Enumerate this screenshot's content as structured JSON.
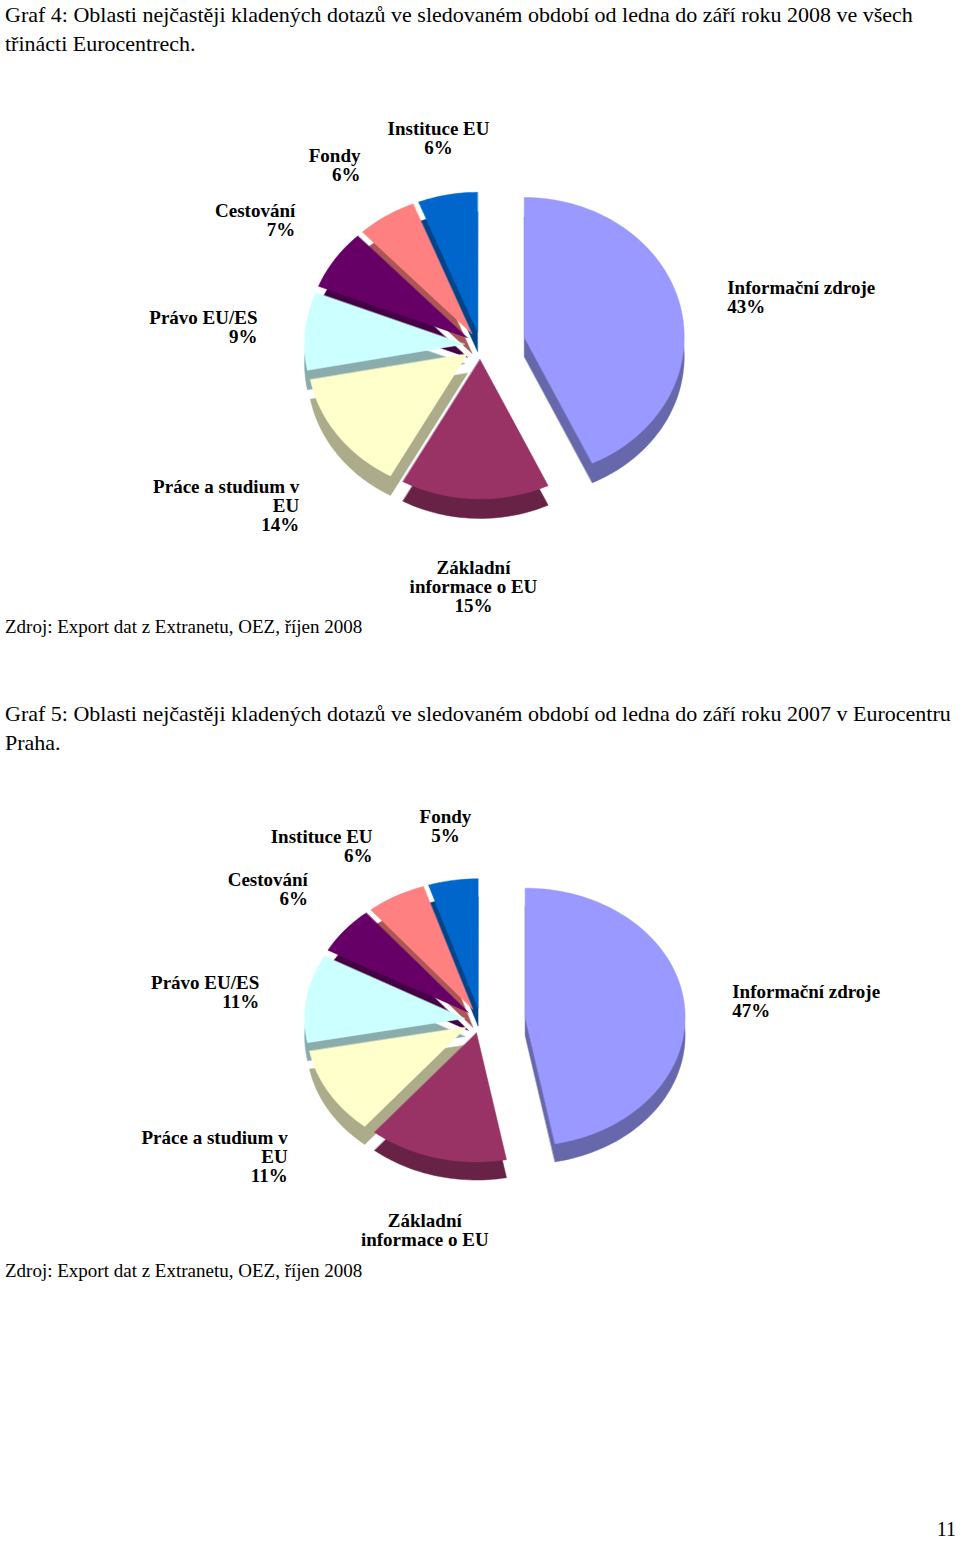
{
  "page_number": "11",
  "chart_data": [
    {
      "type": "pie",
      "title": "Graf 4: Oblasti nejčastěji kladených dotazů ve sledovaném období od ledna do září roku 2008 ve všech třinácti Eurocentrech.",
      "source": "Zdroj: Export dat z Extranetu, OEZ, říjen 2008",
      "categories": [
        "Informační zdroje",
        "Základní informace o EU",
        "Práce a studium v EU",
        "Právo EU/ES",
        "Cestování",
        "Fondy",
        "Instituce EU"
      ],
      "values": [
        43,
        15,
        14,
        9,
        7,
        6,
        6
      ],
      "value_labels": [
        "43%",
        "15%",
        "14%",
        "9%",
        "7%",
        "6%",
        "6%"
      ],
      "colors": [
        "#9999FF",
        "#993366",
        "#FFFFCC",
        "#CCFFFF",
        "#660066",
        "#FF8080",
        "#0066CC"
      ],
      "data_labels": true,
      "tick_labels": false
    },
    {
      "type": "pie",
      "title": "Graf 5: Oblasti nejčastěji kladených dotazů ve sledovaném období od ledna do září roku 2007 v Eurocentru Praha.",
      "source": "Zdroj: Export dat z Extranetu, OEZ, říjen 2008",
      "categories": [
        "Informační zdroje",
        "Základní informace o EU",
        "Práce a studium v EU",
        "Právo EU/ES",
        "Cestování",
        "Instituce EU",
        "Fondy"
      ],
      "values": [
        47,
        14,
        11,
        11,
        6,
        6,
        5
      ],
      "value_labels": [
        "47%",
        null,
        "11%",
        "11%",
        "6%",
        "6%",
        "5%"
      ],
      "colors": [
        "#9999FF",
        "#993366",
        "#FFFFCC",
        "#CCFFFF",
        "#660066",
        "#FF8080",
        "#0066CC"
      ],
      "data_labels": true,
      "tick_labels": false
    }
  ]
}
